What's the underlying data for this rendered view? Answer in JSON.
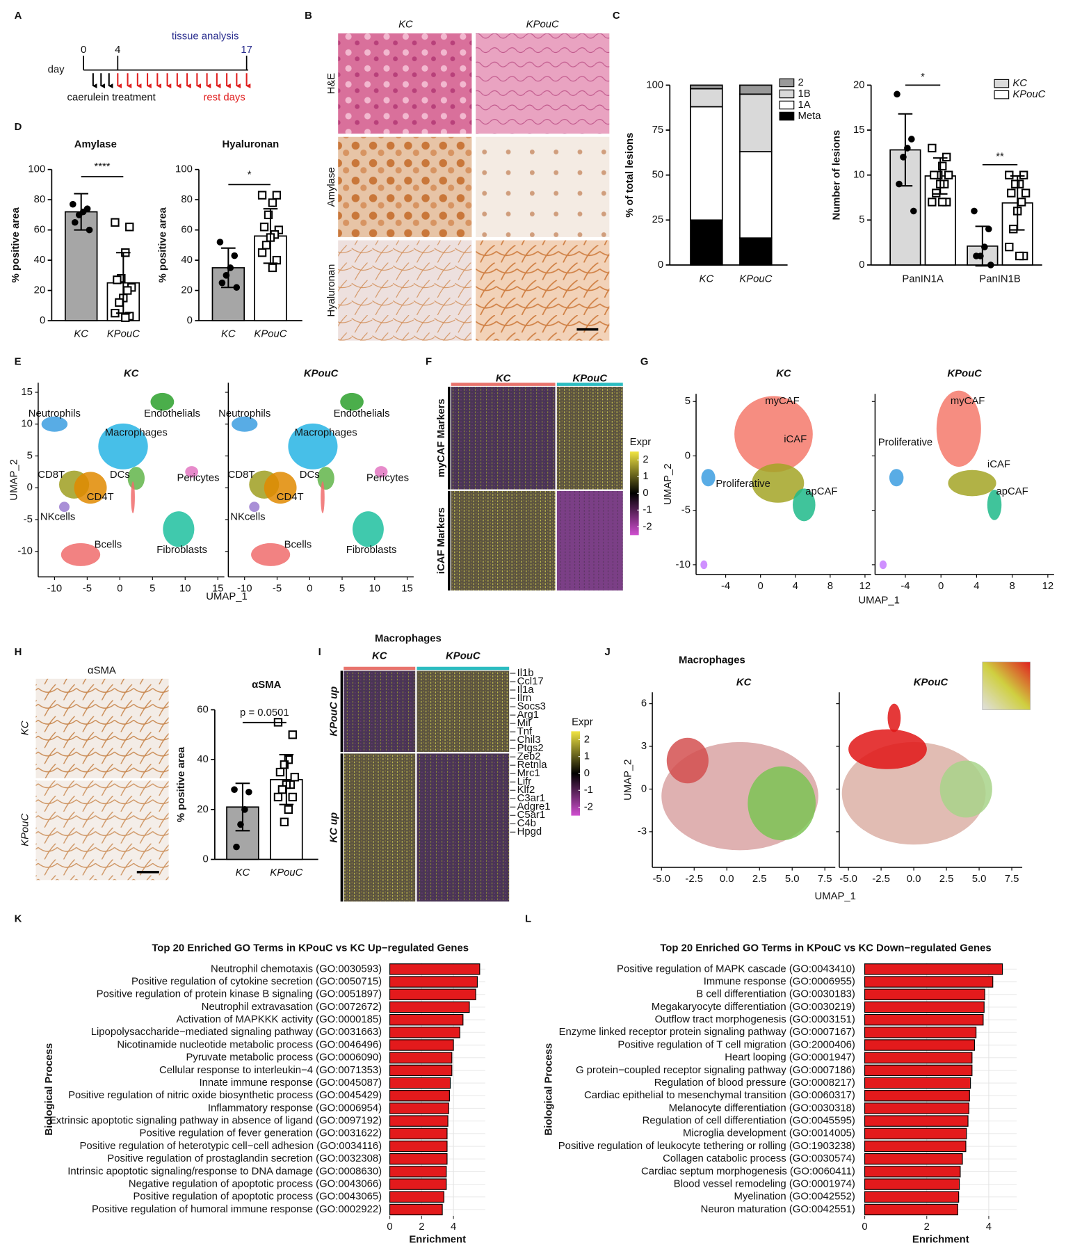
{
  "panel_labels": [
    "A",
    "B",
    "C",
    "D",
    "E",
    "F",
    "G",
    "H",
    "I",
    "J",
    "K",
    "L"
  ],
  "panel_a": {
    "day_label": "day",
    "ticks": [
      "0",
      "4",
      "17"
    ],
    "analysis": "tissue analysis",
    "treatment": "caerulein treatment",
    "rest": "rest days"
  },
  "panel_b": {
    "columns": [
      "KC",
      "KPouC"
    ],
    "rows": [
      "H&E",
      "Amylase",
      "Hyaluronan"
    ]
  },
  "panel_h": {
    "title": "αSMA",
    "rows": [
      "KC",
      "KPouC"
    ]
  },
  "chart_data": [
    {
      "type": "bar",
      "title": "Amylase",
      "ylabel": "% positive area",
      "categories": [
        "KC",
        "KPouC"
      ],
      "values": [
        72,
        25
      ],
      "errors": [
        12,
        20
      ],
      "points": [
        [
          77,
          74,
          72,
          70,
          65,
          60
        ],
        [
          65,
          62,
          45,
          28,
          27,
          22,
          20,
          15,
          12,
          5,
          3,
          2
        ]
      ],
      "colors": [
        "#a6a6a6",
        "#ffffff"
      ],
      "markers": [
        "circle",
        "square"
      ],
      "ylim": [
        0,
        100
      ],
      "yticks": [
        0,
        20,
        40,
        60,
        80,
        100
      ],
      "significance": "****"
    },
    {
      "type": "bar",
      "title": "Hyaluronan",
      "ylabel": "% positive area",
      "categories": [
        "KC",
        "KPouC"
      ],
      "values": [
        35,
        56
      ],
      "errors": [
        13,
        18
      ],
      "points": [
        [
          52,
          43,
          35,
          30,
          25,
          22
        ],
        [
          83,
          83,
          78,
          70,
          62,
          60,
          57,
          55,
          50,
          45,
          40,
          35
        ]
      ],
      "colors": [
        "#a6a6a6",
        "#ffffff"
      ],
      "markers": [
        "circle",
        "square"
      ],
      "ylim": [
        0,
        100
      ],
      "yticks": [
        0,
        20,
        40,
        60,
        80,
        100
      ],
      "significance": "*"
    },
    {
      "type": "stacked_bar",
      "ylabel": "% of total lesions",
      "categories": [
        "KC",
        "KPouC"
      ],
      "series": [
        {
          "name": "Meta",
          "color": "#000000",
          "values": [
            25,
            15
          ]
        },
        {
          "name": "1A",
          "color": "#ffffff",
          "values": [
            63,
            48
          ]
        },
        {
          "name": "1B",
          "color": "#d9d9d9",
          "values": [
            10,
            32
          ]
        },
        {
          "name": "2",
          "color": "#999999",
          "values": [
            2,
            5
          ]
        }
      ],
      "ylim": [
        0,
        100
      ],
      "yticks": [
        0,
        25,
        50,
        75,
        100
      ]
    },
    {
      "type": "grouped_bar",
      "ylabel": "Number of lesions",
      "categories": [
        "PanIN1A",
        "PanIN1B"
      ],
      "series": [
        {
          "name": "KC",
          "color": "#d9d9d9",
          "marker": "circle",
          "values": [
            12.8,
            2.1
          ],
          "errors": [
            4,
            2.2
          ],
          "points": [
            [
              19,
              14,
              13,
              12,
              9,
              6
            ],
            [
              6,
              4,
              2,
              1,
              1,
              0
            ]
          ]
        },
        {
          "name": "KPouC",
          "color": "#ffffff",
          "marker": "square",
          "values": [
            9.9,
            6.9
          ],
          "errors": [
            2,
            3
          ],
          "points": [
            [
              13,
              12,
              11,
              10,
              10,
              10,
              9,
              9,
              8,
              7,
              7,
              7
            ],
            [
              10,
              10,
              9,
              9,
              8,
              8,
              7,
              6,
              4,
              2,
              1,
              1
            ]
          ]
        }
      ],
      "ylim": [
        0,
        20
      ],
      "yticks": [
        0,
        5,
        10,
        15,
        20
      ],
      "significance": [
        "*",
        "**"
      ]
    },
    {
      "type": "bar",
      "title": "αSMA",
      "ylabel": "% positive area",
      "categories": [
        "KC",
        "KPouC"
      ],
      "values": [
        21,
        32
      ],
      "errors": [
        9.5,
        10
      ],
      "points": [
        [
          28,
          27,
          20,
          14,
          5
        ],
        [
          55,
          50,
          40,
          38,
          35,
          33,
          30,
          30,
          28,
          25,
          25,
          20,
          15
        ]
      ],
      "colors": [
        "#a6a6a6",
        "#ffffff"
      ],
      "markers": [
        "circle",
        "square"
      ],
      "ylim": [
        0,
        60
      ],
      "yticks": [
        0,
        20,
        40,
        60
      ],
      "significance": "p = 0.0501"
    },
    {
      "type": "barh",
      "title": "Top 20 Enriched GO Terms in KPouC vs KC Up−regulated Genes",
      "ylabel": "Biological Process",
      "xlabel": "Enrichment",
      "categories": [
        "Neutrophil chemotaxis (GO:0030593)",
        "Positive regulation of cytokine secretion (GO:0050715)",
        "Positive regulation of protein kinase B signaling (GO:0051897)",
        "Neutrophil extravasation (GO:0072672)",
        "Activation of MAPKKK activity (GO:0000185)",
        "Lipopolysaccharide−mediated signaling pathway (GO:0031663)",
        "Nicotinamide nucleotide metabolic process (GO:0046496)",
        "Pyruvate metabolic process (GO:0006090)",
        "Cellular response to interleukin−4 (GO:0071353)",
        "Innate immune response (GO:0045087)",
        "Positive regulation of nitric oxide biosynthetic process (GO:0045429)",
        "Inflammatory response (GO:0006954)",
        "Extrinsic apoptotic signaling pathway in absence of ligand (GO:0097192)",
        "Positive regulation of fever generation (GO:0031622)",
        "Positive regulation of heterotypic cell−cell adhesion (GO:0034116)",
        "Positive regulation of prostaglandin secretion (GO:0032308)",
        "Intrinsic apoptotic signaling/response to DNA damage (GO:0008630)",
        "Negative regulation of apoptotic process (GO:0043066)",
        "Positive regulation of apoptotic process (GO:0043065)",
        "Positive regulation of humoral immune response (GO:0002922)"
      ],
      "values": [
        5.65,
        5.5,
        5.4,
        5.0,
        4.6,
        4.4,
        4.0,
        3.9,
        3.9,
        3.8,
        3.75,
        3.7,
        3.65,
        3.6,
        3.6,
        3.6,
        3.55,
        3.55,
        3.4,
        3.3
      ],
      "color": "#e31a1c",
      "xlim": [
        0,
        6
      ],
      "xticks": [
        0,
        2,
        4
      ],
      "grid": true
    },
    {
      "type": "barh",
      "title": "Top 20 Enriched GO Terms in KPouC vs KC Down−regulated Genes",
      "ylabel": "Biological Process",
      "xlabel": "Enrichment",
      "categories": [
        "Positive regulation of MAPK cascade (GO:0043410)",
        "Immune response (GO:0006955)",
        "B cell differentiation (GO:0030183)",
        "Megakaryocyte differentiation (GO:0030219)",
        "Outflow tract morphogenesis (GO:0003151)",
        "Enzyme linked receptor protein signaling pathway (GO:0007167)",
        "Positive regulation of T cell migration (GO:2000406)",
        "Heart looping (GO:0001947)",
        "G protein−coupled receptor signaling pathway (GO:0007186)",
        "Regulation of blood pressure (GO:0008217)",
        "Cardiac epithelial to mesenchymal transition (GO:0060317)",
        "Melanocyte differentiation (GO:0030318)",
        "Regulation of cell differentiation (GO:0045595)",
        "Microglia development (GO:0014005)",
        "Positive regulation of leukocyte tethering or rolling (GO:1903238)",
        "Collagen catabolic process (GO:0030574)",
        "Cardiac septum morphogenesis (GO:0060411)",
        "Blood vessel remodeling (GO:0001974)",
        "Myelination (GO:0042552)",
        "Neuron maturation (GO:0042551)"
      ],
      "values": [
        4.44,
        4.13,
        3.87,
        3.85,
        3.82,
        3.59,
        3.54,
        3.46,
        3.46,
        3.41,
        3.38,
        3.36,
        3.33,
        3.28,
        3.26,
        3.15,
        3.08,
        3.05,
        3.03,
        3.0
      ],
      "color": "#e31a1c",
      "xlim": [
        0,
        4.9
      ],
      "xticks": [
        0,
        2,
        4
      ],
      "grid": true
    },
    {
      "type": "umap",
      "panels": [
        "KC",
        "KPouC"
      ],
      "xlabel": "UMAP_1",
      "ylabel": "UMAP_2",
      "clusters": [
        "Neutrophils",
        "Endothelials",
        "Macrophages",
        "DCs",
        "Pericytes",
        "CD8T",
        "CD4T",
        "NKcells",
        "Bcells",
        "Fibroblasts"
      ],
      "xlim": [
        -12.5,
        16
      ],
      "xticks": [
        -10,
        -5,
        0,
        5,
        10,
        15
      ],
      "ylim": [
        -14,
        16.5
      ],
      "yticks": [
        -10,
        -5,
        0,
        5,
        10,
        15
      ]
    },
    {
      "type": "umap",
      "panels": [
        "KC",
        "KPouC"
      ],
      "xlabel": "UMAP_1",
      "ylabel": "UMAP_2",
      "clusters": [
        "myCAF",
        "iCAF",
        "Proliferative",
        "apCAF"
      ],
      "xlim": [
        -7.4,
        12.7
      ],
      "xticks": [
        -4,
        0,
        4,
        8,
        12
      ],
      "ylim": [
        -10.9,
        5.7
      ],
      "yticks": [
        -10,
        -5,
        0,
        5
      ]
    },
    {
      "type": "umap",
      "title": "Macrophages",
      "panels": [
        "KC",
        "KPouC"
      ],
      "xlabel": "UMAP_1",
      "ylabel": "UMAP_2",
      "xlim": [
        -5.7,
        8.3
      ],
      "xticks": [
        {
          "value": -5,
          "label": "-5.0"
        },
        {
          "value": -2.5,
          "label": "-2.5"
        },
        {
          "value": 0,
          "label": "0.0"
        },
        {
          "value": 2.5,
          "label": "2.5"
        },
        {
          "value": 5,
          "label": "5.0"
        },
        {
          "value": 7.5,
          "label": "7.5"
        }
      ],
      "ylim": [
        -5.5,
        6.8
      ],
      "yticks": [
        -3,
        0,
        3,
        6
      ]
    },
    {
      "type": "heatmap",
      "groups": [
        "KC",
        "KPouC"
      ],
      "rows": [
        "myCAF Markers",
        "iCAF Markers"
      ],
      "legend_title": "Expr",
      "colorbar_lim": [
        -2.5,
        2.5
      ],
      "colorbar_ticks": [
        2,
        1,
        0,
        -1,
        -2
      ]
    },
    {
      "type": "heatmap",
      "title": "Macrophages",
      "groups": [
        "KC",
        "KPouC"
      ],
      "rows": [
        "KPouC up",
        "KC up"
      ],
      "legend_title": "Expr",
      "genes": [
        "Il1b",
        "Ccl17",
        "Il1a",
        "Ilrn",
        "Socs3",
        "Arg1",
        "Mif",
        "Tnf",
        "Chil3",
        "Ptgs2",
        "Zeb2",
        "Retnla",
        "Mrc1",
        "Lifr",
        "Klf2",
        "C3ar1",
        "Adgre1",
        "C5ar1",
        "C4b",
        "Hpgd"
      ],
      "colorbar_lim": [
        -2.5,
        2.5
      ],
      "colorbar_ticks": [
        2,
        1,
        0,
        -1,
        -2
      ]
    }
  ]
}
